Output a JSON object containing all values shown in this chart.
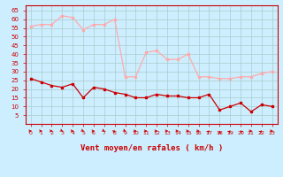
{
  "hours": [
    0,
    1,
    2,
    3,
    4,
    5,
    6,
    7,
    8,
    9,
    10,
    11,
    12,
    13,
    14,
    15,
    16,
    17,
    18,
    19,
    20,
    21,
    22,
    23
  ],
  "wind_avg": [
    26,
    24,
    22,
    21,
    23,
    15,
    21,
    20,
    18,
    17,
    15,
    15,
    17,
    16,
    16,
    15,
    15,
    17,
    8,
    10,
    12,
    7,
    11,
    10
  ],
  "wind_gust": [
    56,
    57,
    57,
    62,
    61,
    54,
    57,
    57,
    60,
    27,
    27,
    41,
    42,
    37,
    37,
    40,
    27,
    27,
    26,
    26,
    27,
    27,
    29,
    30
  ],
  "arrow_angles_deg": [
    0,
    0,
    0,
    -30,
    0,
    -30,
    0,
    -30,
    30,
    -30,
    0,
    0,
    0,
    0,
    0,
    0,
    0,
    45,
    90,
    45,
    135,
    0,
    45,
    0
  ],
  "bg_color": "#cceeff",
  "grid_color": "#aacccc",
  "line_avg_color": "#cc0000",
  "line_gust_color": "#ffaaaa",
  "xlabel": "Vent moyen/en rafales ( km/h )",
  "xlabel_color": "#cc0000",
  "tick_color": "#cc0000",
  "spine_color": "#cc0000",
  "ylim": [
    0,
    68
  ],
  "yticks": [
    5,
    10,
    15,
    20,
    25,
    30,
    35,
    40,
    45,
    50,
    55,
    60,
    65
  ],
  "xlim": [
    -0.5,
    23.5
  ]
}
